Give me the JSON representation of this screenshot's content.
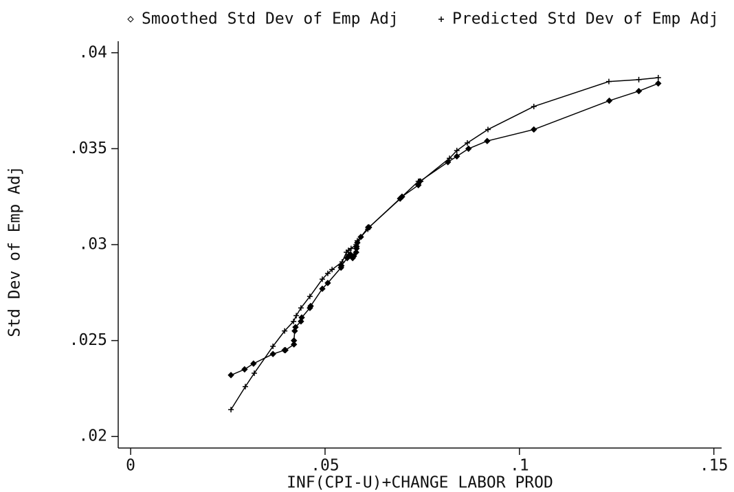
{
  "chart_data": {
    "type": "line",
    "legend": "top",
    "x_label": "INF(CPI-U)+CHANGE LABOR PROD",
    "y_label": "Std Dev of Emp Adj",
    "xlim": [
      -0.0032,
      0.152
    ],
    "ylim": [
      0.0194,
      0.0406
    ],
    "xticks": [
      0,
      {
        "value": 0.05,
        "label": ".05"
      },
      {
        "value": 0.1,
        "label": ".1"
      },
      {
        "value": 0.15,
        "label": ".15"
      }
    ],
    "yticks": [
      {
        "value": 0.02,
        "label": ".02"
      },
      {
        "value": 0.025,
        "label": ".025"
      },
      {
        "value": 0.03,
        "label": ".03"
      },
      {
        "value": 0.035,
        "label": ".035"
      },
      {
        "value": 0.04,
        "label": ".04"
      }
    ],
    "grid": false,
    "series": [
      {
        "name": "Smoothed Std Dev of Emp Adj",
        "color": "#000000",
        "marker": "diamond",
        "x": [
          0.0258,
          0.0293,
          0.0316,
          0.0366,
          0.0396,
          0.0398,
          0.042,
          0.042,
          0.0422,
          0.0424,
          0.0438,
          0.044,
          0.0461,
          0.0463,
          0.0493,
          0.0507,
          0.0541,
          0.0542,
          0.0557,
          0.056,
          0.0565,
          0.0571,
          0.0574,
          0.058,
          0.0581,
          0.0581,
          0.0583,
          0.0592,
          0.0611,
          0.0613,
          0.0693,
          0.0698,
          0.074,
          0.0744,
          0.0816,
          0.0839,
          0.0869,
          0.0917,
          0.1037,
          0.1231,
          0.1307,
          0.1357
        ],
        "values": [
          0.0232,
          0.0235,
          0.0238,
          0.0243,
          0.0245,
          0.0245,
          0.0248,
          0.025,
          0.0255,
          0.0257,
          0.026,
          0.0262,
          0.0267,
          0.0268,
          0.0277,
          0.028,
          0.0288,
          0.0289,
          0.0293,
          0.0294,
          0.0295,
          0.0293,
          0.0294,
          0.0296,
          0.0298,
          0.0299,
          0.0301,
          0.0304,
          0.0309,
          0.0309,
          0.0324,
          0.0325,
          0.0331,
          0.0333,
          0.0343,
          0.0346,
          0.035,
          0.0354,
          0.036,
          0.0375,
          0.038,
          0.0384
        ]
      },
      {
        "name": "Predicted Std Dev of Emp Adj",
        "color": "#000000",
        "marker": "plus",
        "x": [
          0.0258,
          0.0295,
          0.0318,
          0.0366,
          0.0396,
          0.0419,
          0.0426,
          0.0438,
          0.0461,
          0.0493,
          0.0507,
          0.0518,
          0.0544,
          0.0555,
          0.056,
          0.0567,
          0.058,
          0.0583,
          0.061,
          0.0613,
          0.0694,
          0.0698,
          0.074,
          0.0746,
          0.082,
          0.0839,
          0.0866,
          0.0919,
          0.1037,
          0.123,
          0.1307,
          0.1357
        ],
        "values": [
          0.0214,
          0.0226,
          0.0233,
          0.0247,
          0.0255,
          0.026,
          0.0263,
          0.0267,
          0.0273,
          0.0282,
          0.0285,
          0.0287,
          0.0291,
          0.0296,
          0.0297,
          0.0298,
          0.03,
          0.0302,
          0.0308,
          0.0309,
          0.0324,
          0.0325,
          0.0333,
          0.0333,
          0.0345,
          0.0349,
          0.0353,
          0.036,
          0.0372,
          0.0385,
          0.0386,
          0.0387
        ]
      }
    ]
  }
}
